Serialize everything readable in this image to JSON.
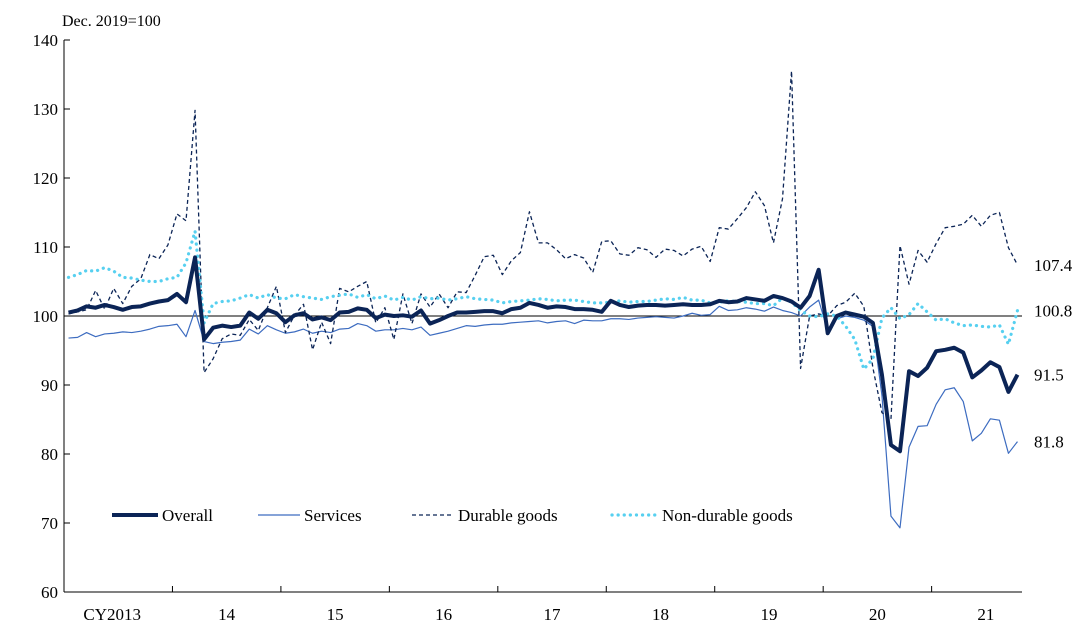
{
  "chart_data": {
    "type": "line",
    "unit_label": "Dec. 2019=100",
    "title": "",
    "xlabel": "",
    "ylabel": "",
    "ylim": [
      60,
      140
    ],
    "yticks": [
      60,
      70,
      80,
      90,
      100,
      110,
      120,
      130,
      140
    ],
    "x_start": "2013-01",
    "x_end": "2021-05",
    "xtick_labels": [
      "CY2013",
      "14",
      "15",
      "16",
      "17",
      "18",
      "19",
      "20",
      "21"
    ],
    "reference_line": 100,
    "grid": false,
    "legend_position": "bottom-left inside",
    "end_labels": [
      "107.4",
      "100.8",
      "91.5",
      "81.8"
    ],
    "series": [
      {
        "name": "Overall",
        "style": "solid-thick",
        "color": "#0b2456",
        "values": [
          100.5,
          100.8,
          101.4,
          101.2,
          101.6,
          101.3,
          100.9,
          101.3,
          101.4,
          101.8,
          102.1,
          102.3,
          103.2,
          102.0,
          108.5,
          96.6,
          98.3,
          98.6,
          98.4,
          98.6,
          100.5,
          99.6,
          100.9,
          100.4,
          99.1,
          100.1,
          100.4,
          99.5,
          99.8,
          99.4,
          100.5,
          100.6,
          101.1,
          100.9,
          99.7,
          100.2,
          100.0,
          100.1,
          99.9,
          100.8,
          98.9,
          99.4,
          100.0,
          100.5,
          100.5,
          100.6,
          100.7,
          100.7,
          100.4,
          101.0,
          101.2,
          101.9,
          101.6,
          101.2,
          101.4,
          101.3,
          101.0,
          101.0,
          100.9,
          100.6,
          102.2,
          101.6,
          101.3,
          101.5,
          101.6,
          101.6,
          101.5,
          101.6,
          101.7,
          101.6,
          101.6,
          101.7,
          102.2,
          102.0,
          102.1,
          102.6,
          102.4,
          102.2,
          102.9,
          102.6,
          102.1,
          101.2,
          102.9,
          106.7,
          97.5,
          100.0,
          100.5,
          100.2,
          99.9,
          99.0,
          91.5,
          81.3,
          80.4,
          92.0,
          91.3,
          92.5,
          94.9,
          95.1,
          95.4,
          94.7,
          91.1,
          92.1,
          93.3,
          92.6,
          89.0,
          91.5
        ]
      },
      {
        "name": "Services",
        "style": "solid-thin",
        "color": "#3d6cc0",
        "values": [
          96.8,
          96.9,
          97.6,
          97.0,
          97.4,
          97.5,
          97.7,
          97.6,
          97.8,
          98.1,
          98.5,
          98.6,
          98.8,
          97.0,
          100.8,
          96.3,
          96.0,
          96.2,
          96.3,
          96.5,
          98.1,
          97.4,
          98.6,
          98.0,
          97.5,
          97.7,
          98.1,
          97.5,
          97.8,
          97.6,
          98.1,
          98.2,
          98.9,
          98.6,
          97.8,
          98.0,
          98.0,
          98.2,
          98.0,
          98.4,
          97.2,
          97.5,
          97.8,
          98.2,
          98.6,
          98.5,
          98.7,
          98.8,
          98.8,
          99.0,
          99.1,
          99.2,
          99.3,
          99.0,
          99.2,
          99.3,
          98.9,
          99.4,
          99.3,
          99.3,
          99.6,
          99.6,
          99.5,
          99.7,
          99.8,
          99.9,
          99.8,
          99.7,
          100.0,
          100.4,
          100.1,
          100.2,
          101.4,
          100.8,
          100.9,
          101.2,
          101.0,
          100.7,
          101.3,
          100.8,
          100.5,
          100.0,
          101.3,
          102.3,
          97.9,
          99.6,
          100.0,
          99.8,
          99.4,
          98.5,
          88.5,
          71.0,
          69.3,
          81.0,
          84.0,
          84.1,
          87.2,
          89.3,
          89.6,
          87.6,
          81.9,
          83.0,
          85.1,
          84.9,
          80.1,
          81.8
        ]
      },
      {
        "name": "Durable goods",
        "style": "dashed",
        "color": "#0b2456",
        "values": [
          100.3,
          100.6,
          100.9,
          103.7,
          101.0,
          104.0,
          101.8,
          104.3,
          105.4,
          108.9,
          108.3,
          110.3,
          114.8,
          113.8,
          129.8,
          91.8,
          93.8,
          96.7,
          97.4,
          97.2,
          99.5,
          97.9,
          101.2,
          104.3,
          97.6,
          100.1,
          101.7,
          95.1,
          99.1,
          96.0,
          104.0,
          103.5,
          104.3,
          105.0,
          99.0,
          101.2,
          96.6,
          103.2,
          98.9,
          103.2,
          101.3,
          103.2,
          101.2,
          103.5,
          103.4,
          105.9,
          108.6,
          108.8,
          106.0,
          108.0,
          109.2,
          115.1,
          110.6,
          110.6,
          109.6,
          108.3,
          108.9,
          108.4,
          106.3,
          110.8,
          110.9,
          109.0,
          108.8,
          109.9,
          109.6,
          108.5,
          109.7,
          109.5,
          108.7,
          109.7,
          110.1,
          107.9,
          112.8,
          112.6,
          114.1,
          115.7,
          118.0,
          116.0,
          110.6,
          117.0,
          135.5,
          92.4,
          100.0,
          100.3,
          100.0,
          101.5,
          102.0,
          103.3,
          101.4,
          92.5,
          86.0,
          85.0,
          110.2,
          104.6,
          109.5,
          107.8,
          110.5,
          112.8,
          113.0,
          113.3,
          114.6,
          113.0,
          114.6,
          115.0,
          109.9,
          107.4
        ]
      },
      {
        "name": "Non-durable goods",
        "style": "dotted",
        "color": "#57d0f0",
        "values": [
          105.6,
          106.0,
          106.6,
          106.5,
          107.0,
          106.5,
          105.6,
          105.5,
          105.2,
          105.0,
          105.0,
          105.4,
          105.6,
          107.7,
          112.3,
          99.0,
          101.8,
          102.1,
          102.2,
          102.6,
          103.1,
          102.6,
          103.1,
          102.6,
          102.5,
          103.1,
          102.8,
          102.6,
          102.4,
          102.8,
          103.0,
          103.2,
          102.7,
          103.1,
          102.5,
          102.9,
          102.3,
          102.7,
          102.3,
          102.8,
          102.5,
          102.6,
          102.3,
          102.5,
          102.8,
          102.5,
          102.4,
          102.3,
          101.9,
          102.1,
          102.2,
          102.3,
          102.5,
          102.4,
          102.2,
          102.3,
          102.3,
          102.1,
          101.9,
          101.9,
          102.0,
          102.2,
          102.0,
          102.1,
          102.1,
          102.3,
          102.5,
          102.4,
          102.7,
          102.3,
          102.3,
          101.9,
          102.0,
          102.2,
          102.1,
          102.0,
          101.8,
          101.8,
          101.5,
          102.6,
          102.0,
          100.8,
          100.0,
          99.9,
          100.3,
          100.0,
          98.5,
          96.6,
          92.3,
          93.8,
          99.7,
          101.2,
          99.6,
          100.2,
          101.8,
          100.6,
          99.4,
          99.6,
          99.0,
          98.6,
          98.7,
          98.5,
          98.4,
          98.7,
          95.9,
          100.8
        ]
      }
    ]
  }
}
